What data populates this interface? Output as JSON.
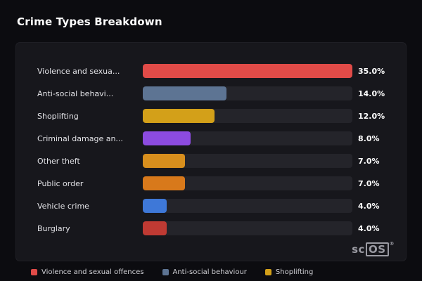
{
  "title": "Crime Types Breakdown",
  "chart_data": {
    "type": "bar",
    "orientation": "horizontal",
    "title": "Crime Types Breakdown",
    "xlabel": "",
    "ylabel": "",
    "xmax": 35,
    "value_suffix": "%",
    "grid": false,
    "legend_position": "bottom",
    "rows": [
      {
        "label": "Violence and sexua...",
        "value": 35.0,
        "display_value": "35.0%",
        "color": "#e14b48"
      },
      {
        "label": "Anti-social behavi...",
        "value": 14.0,
        "display_value": "14.0%",
        "color": "#5d7493"
      },
      {
        "label": "Shoplifting",
        "value": 12.0,
        "display_value": "12.0%",
        "color": "#d3a019"
      },
      {
        "label": "Criminal damage an...",
        "value": 8.0,
        "display_value": "8.0%",
        "color": "#8c4be0"
      },
      {
        "label": "Other theft",
        "value": 7.0,
        "display_value": "7.0%",
        "color": "#d88f1d"
      },
      {
        "label": "Public order",
        "value": 7.0,
        "display_value": "7.0%",
        "color": "#d8791b"
      },
      {
        "label": "Vehicle crime",
        "value": 4.0,
        "display_value": "4.0%",
        "color": "#3e78d8"
      },
      {
        "label": "Burglary",
        "value": 4.0,
        "display_value": "4.0%",
        "color": "#bf3a33"
      }
    ]
  },
  "legend": {
    "items": [
      {
        "label": "Violence and sexual offences",
        "color": "#e14b48"
      },
      {
        "label": "Anti-social behaviour",
        "color": "#5d7493"
      },
      {
        "label": "Shoplifting",
        "color": "#d3a019"
      }
    ]
  },
  "logo": {
    "prefix": "sc",
    "boxed": "OS",
    "registered": "®"
  }
}
